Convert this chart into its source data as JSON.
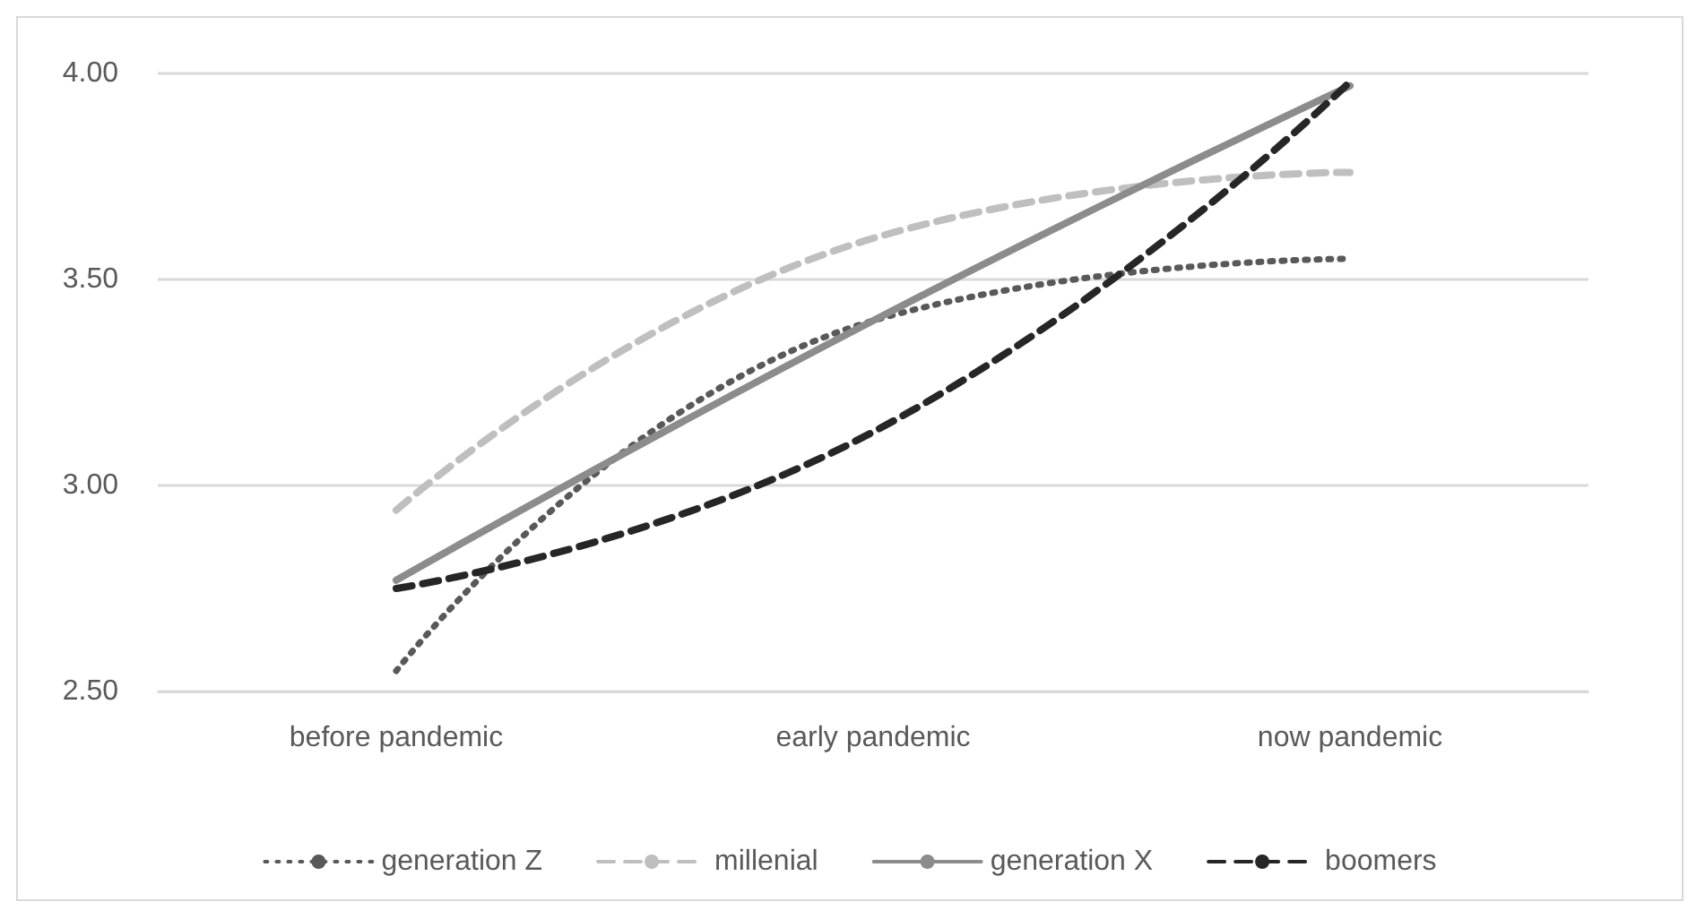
{
  "chart_data": {
    "type": "line",
    "categories": [
      "before pandemic",
      "early pandemic",
      "now pandemic"
    ],
    "series": [
      {
        "name": "generation Z",
        "color": "#595959",
        "line_style": "dotted",
        "values": [
          2.55,
          3.4,
          3.55
        ]
      },
      {
        "name": "millenial",
        "color": "#bfbfbf",
        "line_style": "dashed",
        "values": [
          2.94,
          3.6,
          3.76
        ]
      },
      {
        "name": "generation X",
        "color": "#8c8c8c",
        "line_style": "solid",
        "values": [
          2.77,
          3.4,
          3.97
        ]
      },
      {
        "name": "boomers",
        "color": "#262626",
        "line_style": "dashed",
        "values": [
          2.75,
          3.13,
          3.98
        ]
      }
    ],
    "ylim": [
      2.5,
      4.0
    ],
    "yticks": [
      {
        "value": 2.5,
        "label": "2.50"
      },
      {
        "value": 3.0,
        "label": "3.00"
      },
      {
        "value": 3.5,
        "label": "3.50"
      },
      {
        "value": 4.0,
        "label": "4.00"
      }
    ],
    "grid": "y",
    "legend": "bottom",
    "marker": "none"
  }
}
